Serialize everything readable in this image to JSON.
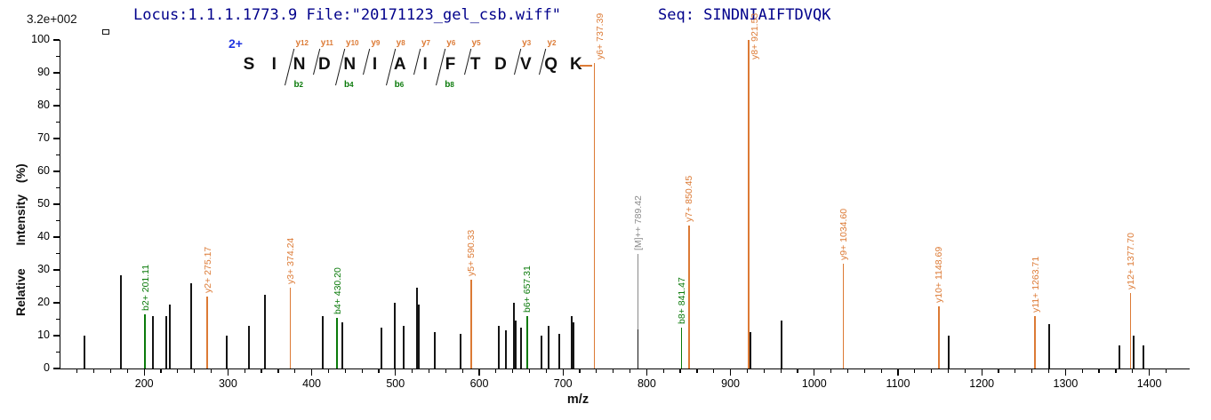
{
  "header": {
    "locus_file": "Locus:1.1.1.1773.9 File:\"20171123_gel_csb.wiff\"",
    "seq": "Seq: SINDNIAIFTDVQK",
    "max_intensity": "3.2e+002",
    "text_color": "#00008b"
  },
  "sequence_panel": {
    "charge_label": "2+",
    "charge_color": "#2236e0",
    "residues": [
      "S",
      "I",
      "N",
      "D",
      "N",
      "I",
      "A",
      "I",
      "F",
      "T",
      "D",
      "V",
      "Q",
      "K"
    ],
    "y_ions": [
      {
        "label": "y12",
        "boundary": 2
      },
      {
        "label": "y11",
        "boundary": 3
      },
      {
        "label": "y10",
        "boundary": 4
      },
      {
        "label": "y9",
        "boundary": 5
      },
      {
        "label": "y8",
        "boundary": 6
      },
      {
        "label": "y7",
        "boundary": 7
      },
      {
        "label": "y6",
        "boundary": 8
      },
      {
        "label": "y5",
        "boundary": 9
      },
      {
        "label": "y3",
        "boundary": 11
      },
      {
        "label": "y2",
        "boundary": 12
      }
    ],
    "b_ions": [
      {
        "label": "b2",
        "boundary": 2
      },
      {
        "label": "b4",
        "boundary": 4
      },
      {
        "label": "b6",
        "boundary": 6
      },
      {
        "label": "b8",
        "boundary": 8
      }
    ]
  },
  "chart_data": {
    "type": "bar",
    "xlabel": "m/z",
    "ylabel": "Relative  Intensity (%)",
    "xlim": [
      100,
      1445
    ],
    "ylim": [
      0,
      100
    ],
    "x_major_ticks": [
      200,
      300,
      400,
      500,
      600,
      700,
      800,
      900,
      1000,
      1100,
      1200,
      1300,
      1400
    ],
    "x_minor_step": 20,
    "x_minor_range": [
      120,
      1420
    ],
    "y_major_step": 10,
    "y_minor_step": 5,
    "colors": {
      "y_ion": "#dc7a35",
      "b_ion": "#0a7a0a",
      "precursor": "#8a8a8a",
      "peak": "#141414"
    },
    "peaks": [
      {
        "mz": 128.5,
        "i": 10
      },
      {
        "mz": 172.5,
        "i": 28.5
      },
      {
        "mz": 201.11,
        "i": 16.5,
        "ion": "b",
        "label": "b2+ 201.11"
      },
      {
        "mz": 210.5,
        "i": 16
      },
      {
        "mz": 226,
        "i": 16
      },
      {
        "mz": 230.5,
        "i": 19.5
      },
      {
        "mz": 256,
        "i": 26
      },
      {
        "mz": 275.17,
        "i": 22,
        "ion": "y",
        "label": "y2+ 275.17"
      },
      {
        "mz": 298.5,
        "i": 10
      },
      {
        "mz": 325,
        "i": 13
      },
      {
        "mz": 344.5,
        "i": 22.5
      },
      {
        "mz": 374.24,
        "i": 24.5,
        "ion": "y",
        "label": "y3+ 374.24"
      },
      {
        "mz": 413.5,
        "i": 16
      },
      {
        "mz": 430.2,
        "i": 15.5,
        "ion": "b",
        "label": "b4+ 430.20"
      },
      {
        "mz": 436,
        "i": 14
      },
      {
        "mz": 483,
        "i": 12.5
      },
      {
        "mz": 499,
        "i": 20
      },
      {
        "mz": 510,
        "i": 13
      },
      {
        "mz": 526,
        "i": 24.5
      },
      {
        "mz": 528,
        "i": 19.5
      },
      {
        "mz": 546.5,
        "i": 11
      },
      {
        "mz": 577.5,
        "i": 10.5
      },
      {
        "mz": 590.33,
        "i": 27,
        "ion": "y",
        "label": "y5+ 590.33"
      },
      {
        "mz": 623,
        "i": 13
      },
      {
        "mz": 631.5,
        "i": 11.5
      },
      {
        "mz": 641.5,
        "i": 20
      },
      {
        "mz": 644,
        "i": 14.5
      },
      {
        "mz": 650,
        "i": 12.5
      },
      {
        "mz": 657.31,
        "i": 16,
        "ion": "b",
        "label": "b6+ 657.31"
      },
      {
        "mz": 674.5,
        "i": 10
      },
      {
        "mz": 683,
        "i": 13
      },
      {
        "mz": 695.5,
        "i": 10.5
      },
      {
        "mz": 710.5,
        "i": 16
      },
      {
        "mz": 712.5,
        "i": 14
      },
      {
        "mz": 737.39,
        "i": 93,
        "ion": "y",
        "label": "y6+ 737.39",
        "topdash": true
      },
      {
        "mz": 789.42,
        "i": 12,
        "ion": "M",
        "label": "[M]++ 789.42",
        "leader": 35
      },
      {
        "mz": 841.47,
        "i": 12.5,
        "ion": "b",
        "label": "b8+ 841.47"
      },
      {
        "mz": 850.45,
        "i": 43.5,
        "ion": "y",
        "label": "y7+ 850.45"
      },
      {
        "mz": 921.53,
        "i": 100,
        "ion": "y",
        "label": "y8+ 921.53"
      },
      {
        "mz": 923.5,
        "i": 11
      },
      {
        "mz": 961,
        "i": 14.5
      },
      {
        "mz": 1034.6,
        "i": 32,
        "ion": "y",
        "label": "y9+ 1034.60"
      },
      {
        "mz": 1148.69,
        "i": 19,
        "ion": "y",
        "label": "y10+ 1148.69"
      },
      {
        "mz": 1161,
        "i": 10
      },
      {
        "mz": 1263.71,
        "i": 16,
        "ion": "y",
        "label": "y11+ 1263.71"
      },
      {
        "mz": 1280,
        "i": 13.5
      },
      {
        "mz": 1364.5,
        "i": 7
      },
      {
        "mz": 1377.7,
        "i": 23,
        "ion": "y",
        "label": "y12+ 1377.70"
      },
      {
        "mz": 1381.5,
        "i": 10
      },
      {
        "mz": 1392.5,
        "i": 7
      }
    ]
  }
}
